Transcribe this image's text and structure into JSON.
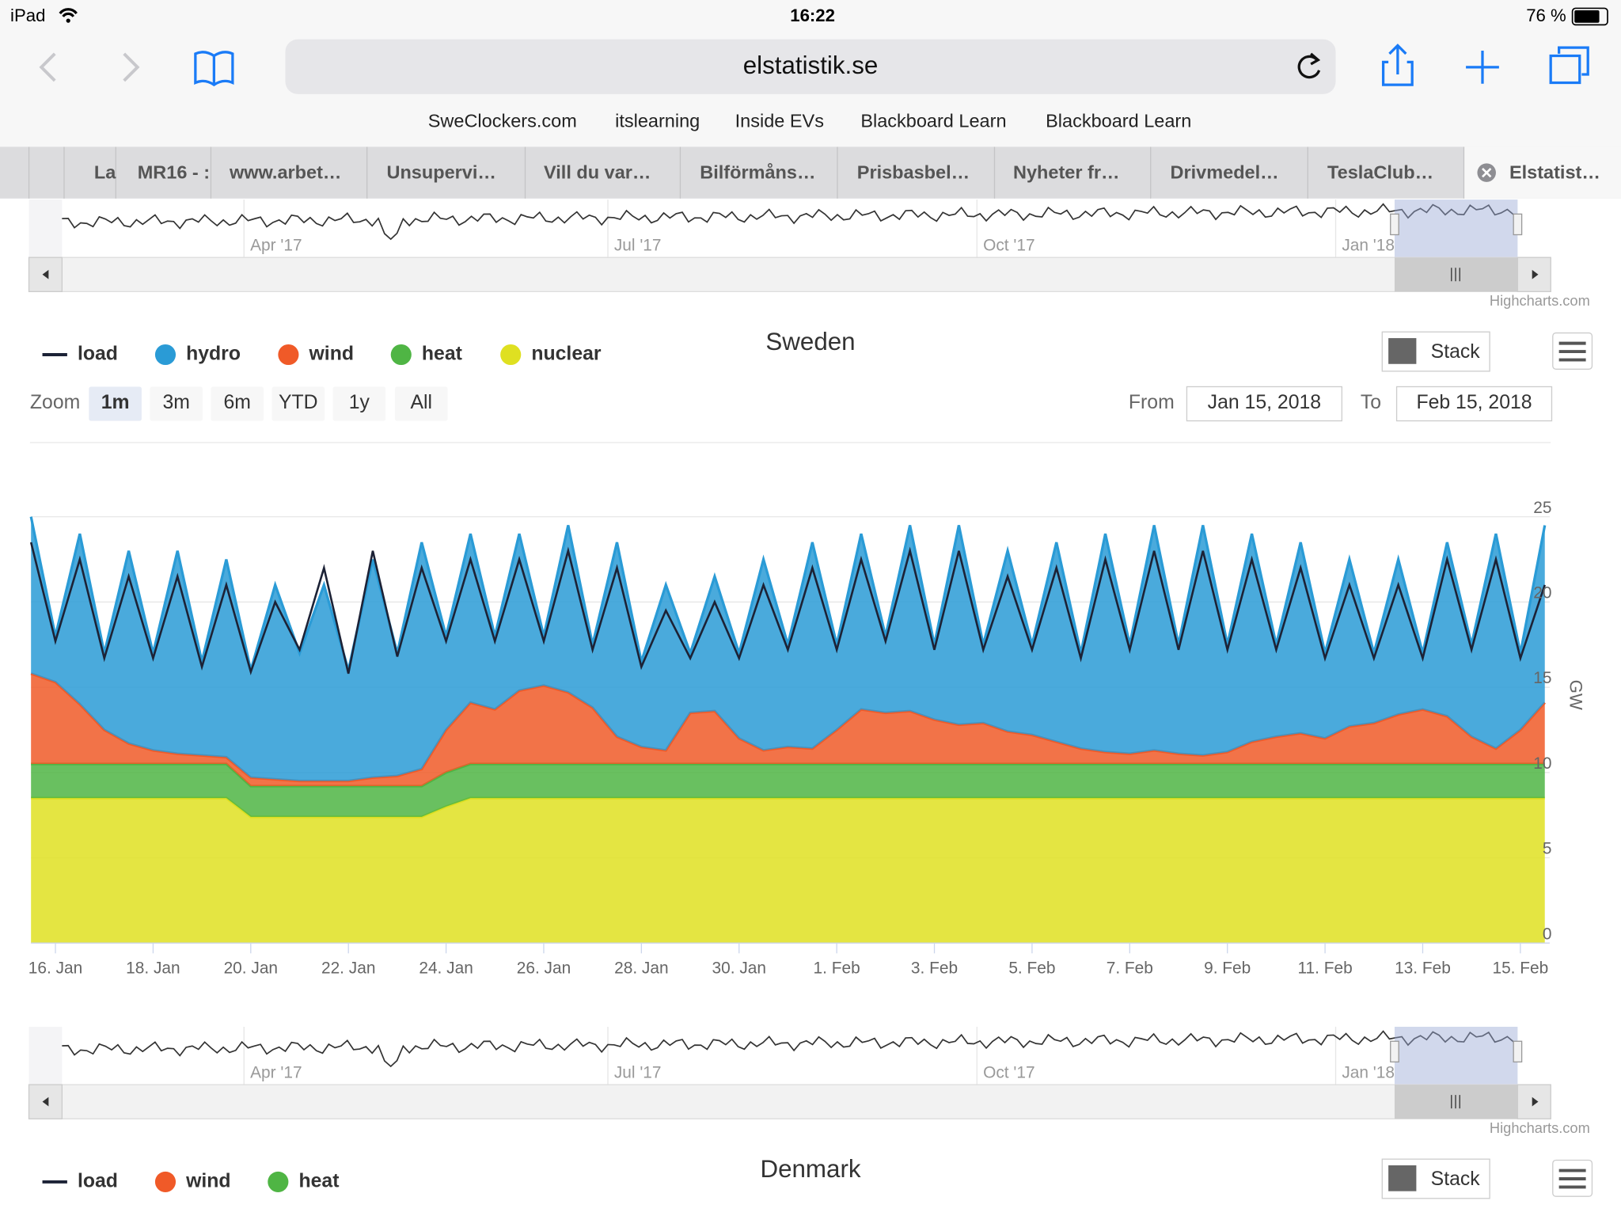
{
  "status": {
    "device": "iPad",
    "time": "16:22",
    "battery": "76 %"
  },
  "browser": {
    "url": "elstatistik.se",
    "bookmarks": [
      "SweClockers.com",
      "itslearning",
      "Inside EVs",
      "Blackboard Learn",
      "Blackboard Learn"
    ],
    "tabs": [
      "La",
      "MR16 - :",
      "www.arbet…",
      "Unsupervi…",
      "Vill du var…",
      "Bilförmåns…",
      "Prisbasbel…",
      "Nyheter fr…",
      "Drivmedel…",
      "TeslaClub…",
      "Elstatist…"
    ]
  },
  "navigator": {
    "labels": [
      "Apr '17",
      "Jul '17",
      "Oct '17",
      "Jan '18"
    ],
    "credit": "Highcharts.com"
  },
  "controls": {
    "stack": "Stack",
    "zoom": "Zoom",
    "buttons": [
      "1m",
      "3m",
      "6m",
      "YTD",
      "1y",
      "All"
    ],
    "from_label": "From",
    "from": "Jan 15, 2018",
    "to_label": "To",
    "to": "Feb 15, 2018"
  },
  "chart_data": {
    "type": "area",
    "title": "Sweden",
    "stacked": true,
    "grid": true,
    "y_label": "GW",
    "x": [
      0.5,
      1,
      1.5,
      2,
      2.5,
      3,
      3.5,
      4,
      4.5,
      5,
      5.5,
      6,
      6.5,
      7,
      7.5,
      8,
      8.5,
      9,
      9.5,
      10,
      10.5,
      11,
      11.5,
      12,
      12.5,
      13,
      13.5,
      14,
      14.5,
      15,
      15.5,
      16,
      16.5,
      17,
      17.5,
      18,
      18.5,
      19,
      19.5,
      20,
      20.5,
      21,
      21.5,
      22,
      22.5,
      23,
      23.5,
      24,
      24.5,
      25,
      25.5,
      26,
      26.5,
      27,
      27.5,
      28,
      28.5,
      29,
      29.5,
      30,
      30.5,
      31,
      31.5
    ],
    "xlim": [
      0.5,
      31.6
    ],
    "xticks": [
      {
        "value": 1,
        "label": "16. Jan"
      },
      {
        "value": 3,
        "label": "18. Jan"
      },
      {
        "value": 5,
        "label": "20. Jan"
      },
      {
        "value": 7,
        "label": "22. Jan"
      },
      {
        "value": 9,
        "label": "24. Jan"
      },
      {
        "value": 11,
        "label": "26. Jan"
      },
      {
        "value": 13,
        "label": "28. Jan"
      },
      {
        "value": 15,
        "label": "30. Jan"
      },
      {
        "value": 17,
        "label": "1. Feb"
      },
      {
        "value": 19,
        "label": "3. Feb"
      },
      {
        "value": 21,
        "label": "5. Feb"
      },
      {
        "value": 23,
        "label": "7. Feb"
      },
      {
        "value": 25,
        "label": "9. Feb"
      },
      {
        "value": 27,
        "label": "11. Feb"
      },
      {
        "value": 29,
        "label": "13. Feb"
      },
      {
        "value": 31,
        "label": "15. Feb"
      }
    ],
    "ylim": [
      0,
      26.5
    ],
    "yticks": [
      0,
      5,
      10,
      15,
      20,
      25
    ],
    "series": [
      {
        "name": "load",
        "kind": "line",
        "color": "#1c2236",
        "values": [
          23.5,
          17.7,
          22.5,
          16.7,
          21.5,
          16.7,
          21.5,
          16.2,
          21,
          15.9,
          20,
          17.2,
          22,
          15.8,
          23,
          16.8,
          22,
          17.7,
          22.5,
          17.7,
          22.5,
          17.7,
          23,
          17.2,
          22,
          16.2,
          19.5,
          16.7,
          20,
          16.7,
          21,
          17.2,
          22,
          17.2,
          22.5,
          17.7,
          23,
          17.2,
          23,
          17.2,
          21.5,
          17.2,
          22,
          16.7,
          22.5,
          17.2,
          23,
          17.2,
          23,
          17.2,
          22.5,
          17.2,
          22,
          16.7,
          21,
          16.7,
          21,
          16.7,
          22.5,
          17.2,
          22.5,
          16.7,
          21
        ]
      },
      {
        "name": "hydro",
        "kind": "area",
        "color": "#2a9bd6",
        "values": [
          9.2,
          2.7,
          10,
          4.5,
          11.3,
          5.7,
          11.9,
          5.5,
          11.6,
          6.3,
          11.4,
          7.5,
          11.5,
          6.5,
          12.8,
          7.2,
          13.3,
          5.5,
          9.9,
          4.3,
          9.2,
          2.9,
          9.8,
          3.7,
          11.4,
          5,
          9.7,
          3.5,
          7.9,
          5,
          11.2,
          6,
          12.1,
          5,
          10.3,
          4.5,
          10.9,
          4.4,
          11.7,
          4.6,
          10.6,
          5.3,
          11.7,
          5.6,
          12.8,
          6.4,
          13.2,
          6.4,
          13.5,
          6.3,
          12.2,
          5.4,
          11.2,
          5,
          9.8,
          4.1,
          9.1,
          3.3,
          10.2,
          5.4,
          12.6,
          4.5,
          10.4
        ]
      },
      {
        "name": "wind",
        "kind": "area",
        "color": "#f05a28",
        "values": [
          5.3,
          4.8,
          3.5,
          2,
          1.2,
          0.8,
          0.6,
          0.5,
          0.4,
          0.5,
          0.4,
          0.3,
          0.3,
          0.3,
          0.5,
          0.6,
          1,
          2.5,
          3.6,
          3.2,
          4.3,
          4.6,
          4.2,
          3.3,
          1.6,
          1,
          0.8,
          3,
          3.1,
          1.5,
          0.8,
          1,
          0.9,
          2,
          3.2,
          3,
          3.1,
          2.6,
          2.3,
          2.4,
          1.9,
          1.7,
          1.3,
          0.9,
          0.7,
          0.6,
          0.8,
          0.6,
          0.5,
          0.7,
          1.3,
          1.6,
          1.8,
          1.5,
          2.2,
          2.4,
          2.9,
          3.2,
          2.8,
          1.6,
          0.9,
          2,
          3.6
        ]
      },
      {
        "name": "heat",
        "kind": "area",
        "color": "#4fb544",
        "values": [
          2,
          2,
          2,
          2,
          2,
          2,
          2,
          2,
          2,
          1.8,
          1.8,
          1.8,
          1.8,
          1.8,
          1.8,
          1.8,
          1.8,
          2,
          2,
          2,
          2,
          2,
          2,
          2,
          2,
          2,
          2,
          2,
          2,
          2,
          2,
          2,
          2,
          2,
          2,
          2,
          2,
          2,
          2,
          2,
          2,
          2,
          2,
          2,
          2,
          2,
          2,
          2,
          2,
          2,
          2,
          2,
          2,
          2,
          2,
          2,
          2,
          2,
          2,
          2,
          2,
          2,
          2
        ]
      },
      {
        "name": "nuclear",
        "kind": "area",
        "color": "#dfe021",
        "values": [
          8.5,
          8.5,
          8.5,
          8.5,
          8.5,
          8.5,
          8.5,
          8.5,
          8.5,
          7.4,
          7.4,
          7.4,
          7.4,
          7.4,
          7.4,
          7.4,
          7.4,
          8,
          8.5,
          8.5,
          8.5,
          8.5,
          8.5,
          8.5,
          8.5,
          8.5,
          8.5,
          8.5,
          8.5,
          8.5,
          8.5,
          8.5,
          8.5,
          8.5,
          8.5,
          8.5,
          8.5,
          8.5,
          8.5,
          8.5,
          8.5,
          8.5,
          8.5,
          8.5,
          8.5,
          8.5,
          8.5,
          8.5,
          8.5,
          8.5,
          8.5,
          8.5,
          8.5,
          8.5,
          8.5,
          8.5,
          8.5,
          8.5,
          8.5,
          8.5,
          8.5,
          8.5,
          8.5
        ]
      }
    ]
  },
  "next_chart": {
    "title": "Denmark",
    "legend": [
      {
        "name": "load",
        "kind": "line",
        "color": "#1c2236"
      },
      {
        "name": "wind",
        "kind": "area",
        "color": "#f05a28"
      },
      {
        "name": "heat",
        "kind": "area",
        "color": "#4fb544"
      }
    ]
  }
}
